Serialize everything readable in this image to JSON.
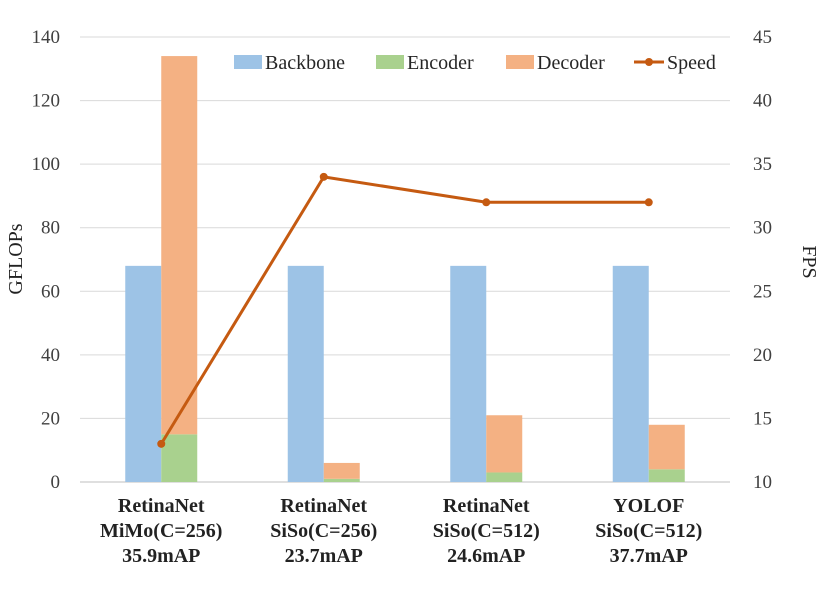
{
  "chart_data": {
    "type": "bar",
    "stacked": true,
    "categories": [
      [
        "RetinaNet",
        "MiMo(C=256)",
        "35.9mAP"
      ],
      [
        "RetinaNet",
        "SiSo(C=256)",
        "23.7mAP"
      ],
      [
        "RetinaNet",
        "SiSo(C=512)",
        "24.6mAP"
      ],
      [
        "YOLOF",
        "SiSo(C=512)",
        "37.7mAP"
      ]
    ],
    "series": [
      {
        "name": "Backbone",
        "kind": "bar",
        "stack": "a",
        "color": "#9DC3E6",
        "values": [
          68,
          68,
          68,
          68
        ]
      },
      {
        "name": "Encoder",
        "kind": "bar",
        "stack": "b",
        "color": "#A9D18E",
        "values": [
          15,
          1,
          3,
          4
        ]
      },
      {
        "name": "Decoder",
        "kind": "bar",
        "stack": "b",
        "color": "#F4B183",
        "values": [
          119,
          5,
          18,
          14
        ]
      },
      {
        "name": "Speed",
        "kind": "line",
        "axis": "right",
        "color": "#C55A11",
        "values": [
          13,
          34,
          32,
          32
        ]
      }
    ],
    "ylabel": "GFLOPs",
    "ylabel_right": "FPS",
    "ylim": [
      0,
      140
    ],
    "yticks": [
      0,
      20,
      40,
      60,
      80,
      100,
      120,
      140
    ],
    "ylim_right": [
      10,
      45
    ],
    "yticks_right": [
      10,
      15,
      20,
      25,
      30,
      35,
      40,
      45
    ],
    "grid": true,
    "legend_position": "top-right"
  }
}
